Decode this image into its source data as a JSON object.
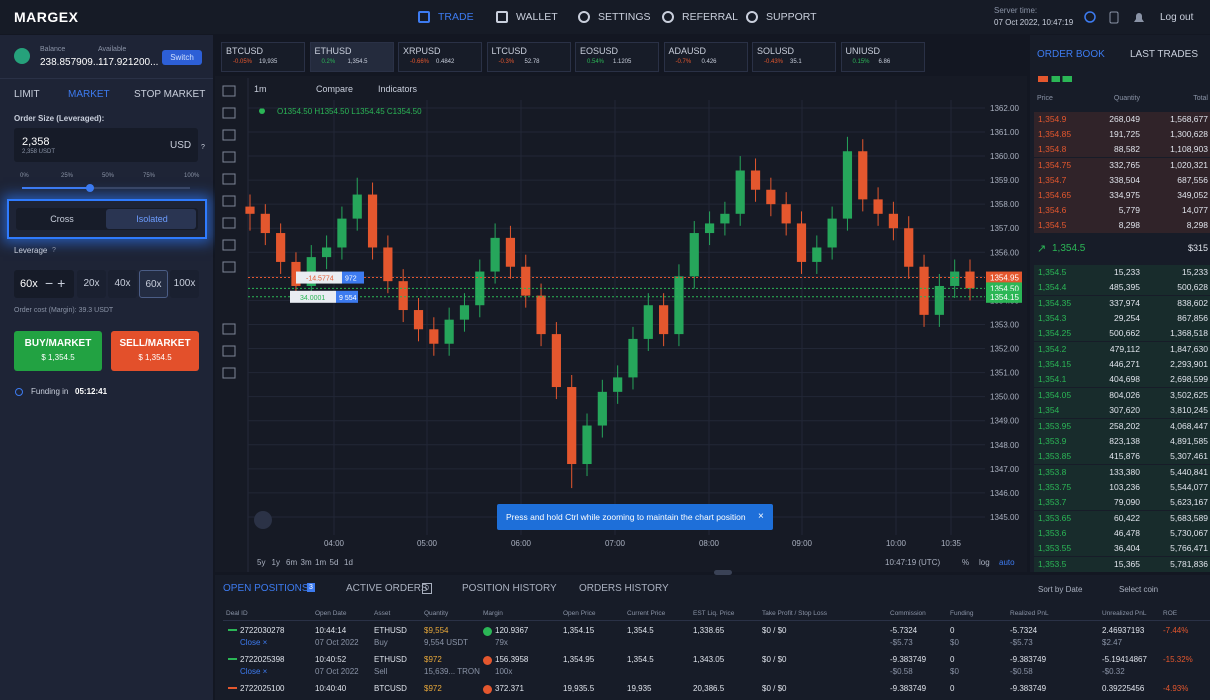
{
  "header": {
    "logo": "MARGEX",
    "nav": [
      "TRADE",
      "WALLET",
      "SETTINGS",
      "REFERRAL",
      "SUPPORT"
    ],
    "server_time_label": "Server time:",
    "server_time": "07 Oct 2022, 10:47:19",
    "logout": "Log out"
  },
  "account": {
    "balance_label": "Balance",
    "balance": "238.857909...",
    "available_label": "Available",
    "available": "117.921200...",
    "switch": "Switch"
  },
  "order_form": {
    "tabs": [
      "LIMIT",
      "MARKET",
      "STOP MARKET"
    ],
    "size_label": "Order Size (Leveraged):",
    "amount": "2,358",
    "amount_sub": "2,358 USDT",
    "currency": "USD",
    "help": "?",
    "slider_marks": [
      "0%",
      "25%",
      "50%",
      "75%",
      "100%"
    ],
    "margin_modes": [
      "Cross",
      "Isolated"
    ],
    "leverage_label": "Leverage",
    "leverage_help": "?",
    "leverage": "60x",
    "leverage_options": [
      "20x",
      "40x",
      "60x",
      "100x"
    ],
    "order_cost": "Order cost (Margin): 39.3 USDT",
    "buy_label": "BUY/MARKET",
    "buy_price": "$ 1,354.5",
    "sell_label": "SELL/MARKET",
    "sell_price": "$ 1,354.5",
    "funding_label": "Funding in",
    "funding_time": "05:12:41"
  },
  "tickers": [
    {
      "symbol": "BTCUSD",
      "change": "-0.05%",
      "price": "19,935"
    },
    {
      "symbol": "ETHUSD",
      "change": "0.2%",
      "price": "1,354.5"
    },
    {
      "symbol": "XRPUSD",
      "change": "-0.66%",
      "price": "0.4842"
    },
    {
      "symbol": "LTCUSD",
      "change": "-0.3%",
      "price": "52.78"
    },
    {
      "symbol": "EOSUSD",
      "change": "0.54%",
      "price": "1.1205"
    },
    {
      "symbol": "ADAUSD",
      "change": "-0.7%",
      "price": "0.426"
    },
    {
      "symbol": "SOLUSD",
      "change": "-0.43%",
      "price": "35.1"
    },
    {
      "symbol": "UNIUSD",
      "change": "0.15%",
      "price": "6.86"
    }
  ],
  "chart": {
    "type": "candlestick",
    "interval": "1m",
    "compare": "Compare",
    "indicators": "Indicators",
    "ohlc_legend": "O1354.50 H1354.50 L1354.45 C1354.50",
    "up_color": "#26a65b",
    "down_color": "#e4572e",
    "candles": [
      [
        1357.9,
        1358.4,
        1356.9,
        1357.6
      ],
      [
        1357.6,
        1358.0,
        1356.3,
        1356.8
      ],
      [
        1356.8,
        1357.2,
        1355.1,
        1355.6
      ],
      [
        1355.6,
        1356.0,
        1354.1,
        1354.6
      ],
      [
        1354.6,
        1356.3,
        1354.1,
        1355.8
      ],
      [
        1355.8,
        1356.7,
        1355.3,
        1356.2
      ],
      [
        1356.2,
        1357.9,
        1355.7,
        1357.4
      ],
      [
        1357.4,
        1359.1,
        1356.9,
        1358.4
      ],
      [
        1358.4,
        1358.9,
        1355.7,
        1356.2
      ],
      [
        1356.2,
        1356.7,
        1354.3,
        1354.8
      ],
      [
        1354.8,
        1355.3,
        1353.1,
        1353.6
      ],
      [
        1353.6,
        1354.1,
        1352.3,
        1352.8
      ],
      [
        1352.8,
        1353.3,
        1351.7,
        1352.2
      ],
      [
        1352.2,
        1353.7,
        1351.7,
        1353.2
      ],
      [
        1353.2,
        1354.3,
        1352.7,
        1353.8
      ],
      [
        1353.8,
        1355.7,
        1353.3,
        1355.2
      ],
      [
        1355.2,
        1357.2,
        1354.7,
        1356.6
      ],
      [
        1356.6,
        1357.1,
        1354.9,
        1355.4
      ],
      [
        1355.4,
        1355.9,
        1353.7,
        1354.2
      ],
      [
        1354.2,
        1354.7,
        1352.1,
        1352.6
      ],
      [
        1352.6,
        1353.1,
        1349.9,
        1350.4
      ],
      [
        1350.4,
        1350.9,
        1346.2,
        1347.2
      ],
      [
        1347.2,
        1349.3,
        1346.7,
        1348.8
      ],
      [
        1348.8,
        1350.7,
        1348.3,
        1350.2
      ],
      [
        1350.2,
        1351.3,
        1349.7,
        1350.8
      ],
      [
        1350.8,
        1352.9,
        1350.3,
        1352.4
      ],
      [
        1352.4,
        1354.3,
        1351.9,
        1353.8
      ],
      [
        1353.8,
        1354.3,
        1352.1,
        1352.6
      ],
      [
        1352.6,
        1355.5,
        1352.1,
        1355.0
      ],
      [
        1355.0,
        1357.3,
        1354.5,
        1356.8
      ],
      [
        1356.8,
        1357.7,
        1356.3,
        1357.2
      ],
      [
        1357.2,
        1358.1,
        1356.7,
        1357.6
      ],
      [
        1357.6,
        1360.0,
        1357.1,
        1359.4
      ],
      [
        1359.4,
        1359.9,
        1358.1,
        1358.6
      ],
      [
        1358.6,
        1359.1,
        1357.5,
        1358.0
      ],
      [
        1358.0,
        1358.5,
        1356.7,
        1357.2
      ],
      [
        1357.2,
        1357.7,
        1355.1,
        1355.6
      ],
      [
        1355.6,
        1356.7,
        1355.1,
        1356.2
      ],
      [
        1356.2,
        1357.9,
        1355.7,
        1357.4
      ],
      [
        1357.4,
        1360.8,
        1356.9,
        1360.2
      ],
      [
        1360.2,
        1360.7,
        1357.7,
        1358.2
      ],
      [
        1358.2,
        1358.7,
        1357.1,
        1357.6
      ],
      [
        1357.6,
        1358.1,
        1356.5,
        1357.0
      ],
      [
        1357.0,
        1357.5,
        1354.9,
        1355.4
      ],
      [
        1355.4,
        1355.9,
        1352.9,
        1353.4
      ],
      [
        1353.4,
        1355.1,
        1352.9,
        1354.6
      ],
      [
        1354.6,
        1355.7,
        1354.1,
        1355.2
      ],
      [
        1355.2,
        1355.7,
        1354.0,
        1354.5
      ]
    ],
    "ylim": [
      1344.25,
      1362.33
    ],
    "yticks": [
      {
        "value": 1345,
        "label": "1345.00"
      },
      {
        "value": 1346,
        "label": "1346.00"
      },
      {
        "value": 1347,
        "label": "1347.00"
      },
      {
        "value": 1348,
        "label": "1348.00"
      },
      {
        "value": 1349,
        "label": "1349.00"
      },
      {
        "value": 1350,
        "label": "1350.00"
      },
      {
        "value": 1351,
        "label": "1351.00"
      },
      {
        "value": 1352,
        "label": "1352.00"
      },
      {
        "value": 1353,
        "label": "1353.00"
      },
      {
        "value": 1354,
        "label": "1354.00"
      },
      {
        "value": 1355,
        "label": "1355.00"
      },
      {
        "value": 1356,
        "label": "1356.00"
      },
      {
        "value": 1357,
        "label": "1357.00"
      },
      {
        "value": 1358,
        "label": "1358.00"
      },
      {
        "value": 1359,
        "label": "1359.00"
      },
      {
        "value": 1360,
        "label": "1360.00"
      },
      {
        "value": 1361,
        "label": "1361.00"
      },
      {
        "value": 1362,
        "label": "1362.00"
      }
    ],
    "x_labels": [
      "04:00",
      "05:00",
      "06:00",
      "07:00",
      "08:00",
      "09:00",
      "10:00",
      "10:35"
    ],
    "price_tags": [
      {
        "value": 1354.95,
        "label": "1354.95"
      },
      {
        "value": 1354.5,
        "label": "1354.50"
      },
      {
        "value": 1354.15,
        "label": "1354.15"
      }
    ],
    "positions": [
      {
        "pnl": "-14.5774",
        "qty": "972"
      },
      {
        "pnl": "34.0001",
        "qty": "9 554"
      }
    ],
    "tooltip": "Press and hold Ctrl while zooming to maintain the chart position",
    "ranges": [
      "5y",
      "1y",
      "6m",
      "3m",
      "1m",
      "5d",
      "1d"
    ],
    "clock": "10:47:19 (UTC)",
    "scale_options": [
      "%",
      "log",
      "auto"
    ]
  },
  "order_book": {
    "tabs": [
      "ORDER BOOK",
      "LAST TRADES"
    ],
    "headers": [
      "Price",
      "Quantity",
      "Total"
    ],
    "asks": [
      [
        "1,354.9",
        "268,049",
        "1,568,677"
      ],
      [
        "1,354.85",
        "191,725",
        "1,300,628"
      ],
      [
        "1,354.8",
        "88,582",
        "1,108,903"
      ],
      [
        "1,354.75",
        "332,765",
        "1,020,321"
      ],
      [
        "1,354.7",
        "338,504",
        "687,556"
      ],
      [
        "1,354.65",
        "334,975",
        "349,052"
      ],
      [
        "1,354.6",
        "5,779",
        "14,077"
      ],
      [
        "1,354.5",
        "8,298",
        "8,298"
      ]
    ],
    "mid_price": "1,354.5",
    "mid_value": "$315",
    "bids": [
      [
        "1,354.5",
        "15,233",
        "15,233"
      ],
      [
        "1,354.4",
        "485,395",
        "500,628"
      ],
      [
        "1,354.35",
        "337,974",
        "838,602"
      ],
      [
        "1,354.3",
        "29,254",
        "867,856"
      ],
      [
        "1,354.25",
        "500,662",
        "1,368,518"
      ],
      [
        "1,354.2",
        "479,112",
        "1,847,630"
      ],
      [
        "1,354.15",
        "446,271",
        "2,293,901"
      ],
      [
        "1,354.1",
        "404,698",
        "2,698,599"
      ],
      [
        "1,354.05",
        "804,026",
        "3,502,625"
      ],
      [
        "1,354",
        "307,620",
        "3,810,245"
      ],
      [
        "1,353.95",
        "258,202",
        "4,068,447"
      ],
      [
        "1,353.9",
        "823,138",
        "4,891,585"
      ],
      [
        "1,353.85",
        "415,876",
        "5,307,461"
      ],
      [
        "1,353.8",
        "133,380",
        "5,440,841"
      ],
      [
        "1,353.75",
        "103,236",
        "5,544,077"
      ],
      [
        "1,353.7",
        "79,090",
        "5,623,167"
      ],
      [
        "1,353.65",
        "60,422",
        "5,683,589"
      ],
      [
        "1,353.6",
        "46,478",
        "5,730,067"
      ],
      [
        "1,353.55",
        "36,404",
        "5,766,471"
      ],
      [
        "1,353.5",
        "15,365",
        "5,781,836"
      ]
    ]
  },
  "positions_panel": {
    "tabs": [
      {
        "label": "OPEN POSITIONS",
        "count": "3"
      },
      {
        "label": "ACTIVE ORDERS",
        "count": "0"
      },
      {
        "label": "POSITION HISTORY"
      },
      {
        "label": "ORDERS HISTORY"
      }
    ],
    "sort": "Sort by Date",
    "coin": "Select coin",
    "headers": [
      "Deal ID",
      "Open Date",
      "Asset",
      "Quantity",
      "Margin",
      "Open Price",
      "Current Price",
      "EST Liq. Price",
      "Take Profit / Stop Loss",
      "Commission",
      "Funding",
      "Realized PnL",
      "Unrealized PnL",
      "ROE"
    ],
    "rows": [
      [
        [
          "2722030278",
          "Close ×"
        ],
        [
          "10:44:14",
          "07 Oct 2022"
        ],
        [
          "ETHUSD",
          "Buy"
        ],
        [
          "$9,554",
          "9,554 USDT"
        ],
        [
          "120.9367",
          "79x"
        ],
        [
          "1,354.15"
        ],
        [
          "1,354.5"
        ],
        [
          "1,338.65"
        ],
        [
          "$0 / $0"
        ],
        [
          "-5.7324",
          "-$5.73"
        ],
        [
          "0",
          "$0"
        ],
        [
          "-5.7324",
          "-$5.73"
        ],
        [
          "2.46937193",
          "$2.47"
        ],
        [
          "-7.44%"
        ]
      ],
      [
        [
          "2722025398",
          "Close ×"
        ],
        [
          "10:40:52",
          "07 Oct 2022"
        ],
        [
          "ETHUSD",
          "Sell"
        ],
        [
          "$972",
          "15,639... TRON"
        ],
        [
          "156.3958",
          "100x"
        ],
        [
          "1,354.95"
        ],
        [
          "1,354.5"
        ],
        [
          "1,343.05"
        ],
        [
          "$0 / $0"
        ],
        [
          "-9.383749",
          "-$0.58"
        ],
        [
          "0",
          "$0"
        ],
        [
          "-9.383749",
          "-$0.58"
        ],
        [
          "-5.19414867",
          "-$0.32"
        ],
        [
          "-15.32%"
        ]
      ],
      [
        [
          "2722025100"
        ],
        [
          "10:40:40"
        ],
        [
          "BTCUSD"
        ],
        [
          "$972"
        ],
        [
          "372.371"
        ],
        [
          "19,935.5"
        ],
        [
          "19,935"
        ],
        [
          "20,386.5"
        ],
        [
          "$0 / $0"
        ],
        [
          "-9.383749"
        ],
        [
          "0"
        ],
        [
          "-9.383749"
        ],
        [
          "0.39225456"
        ],
        [
          "-4.93%"
        ]
      ]
    ]
  }
}
